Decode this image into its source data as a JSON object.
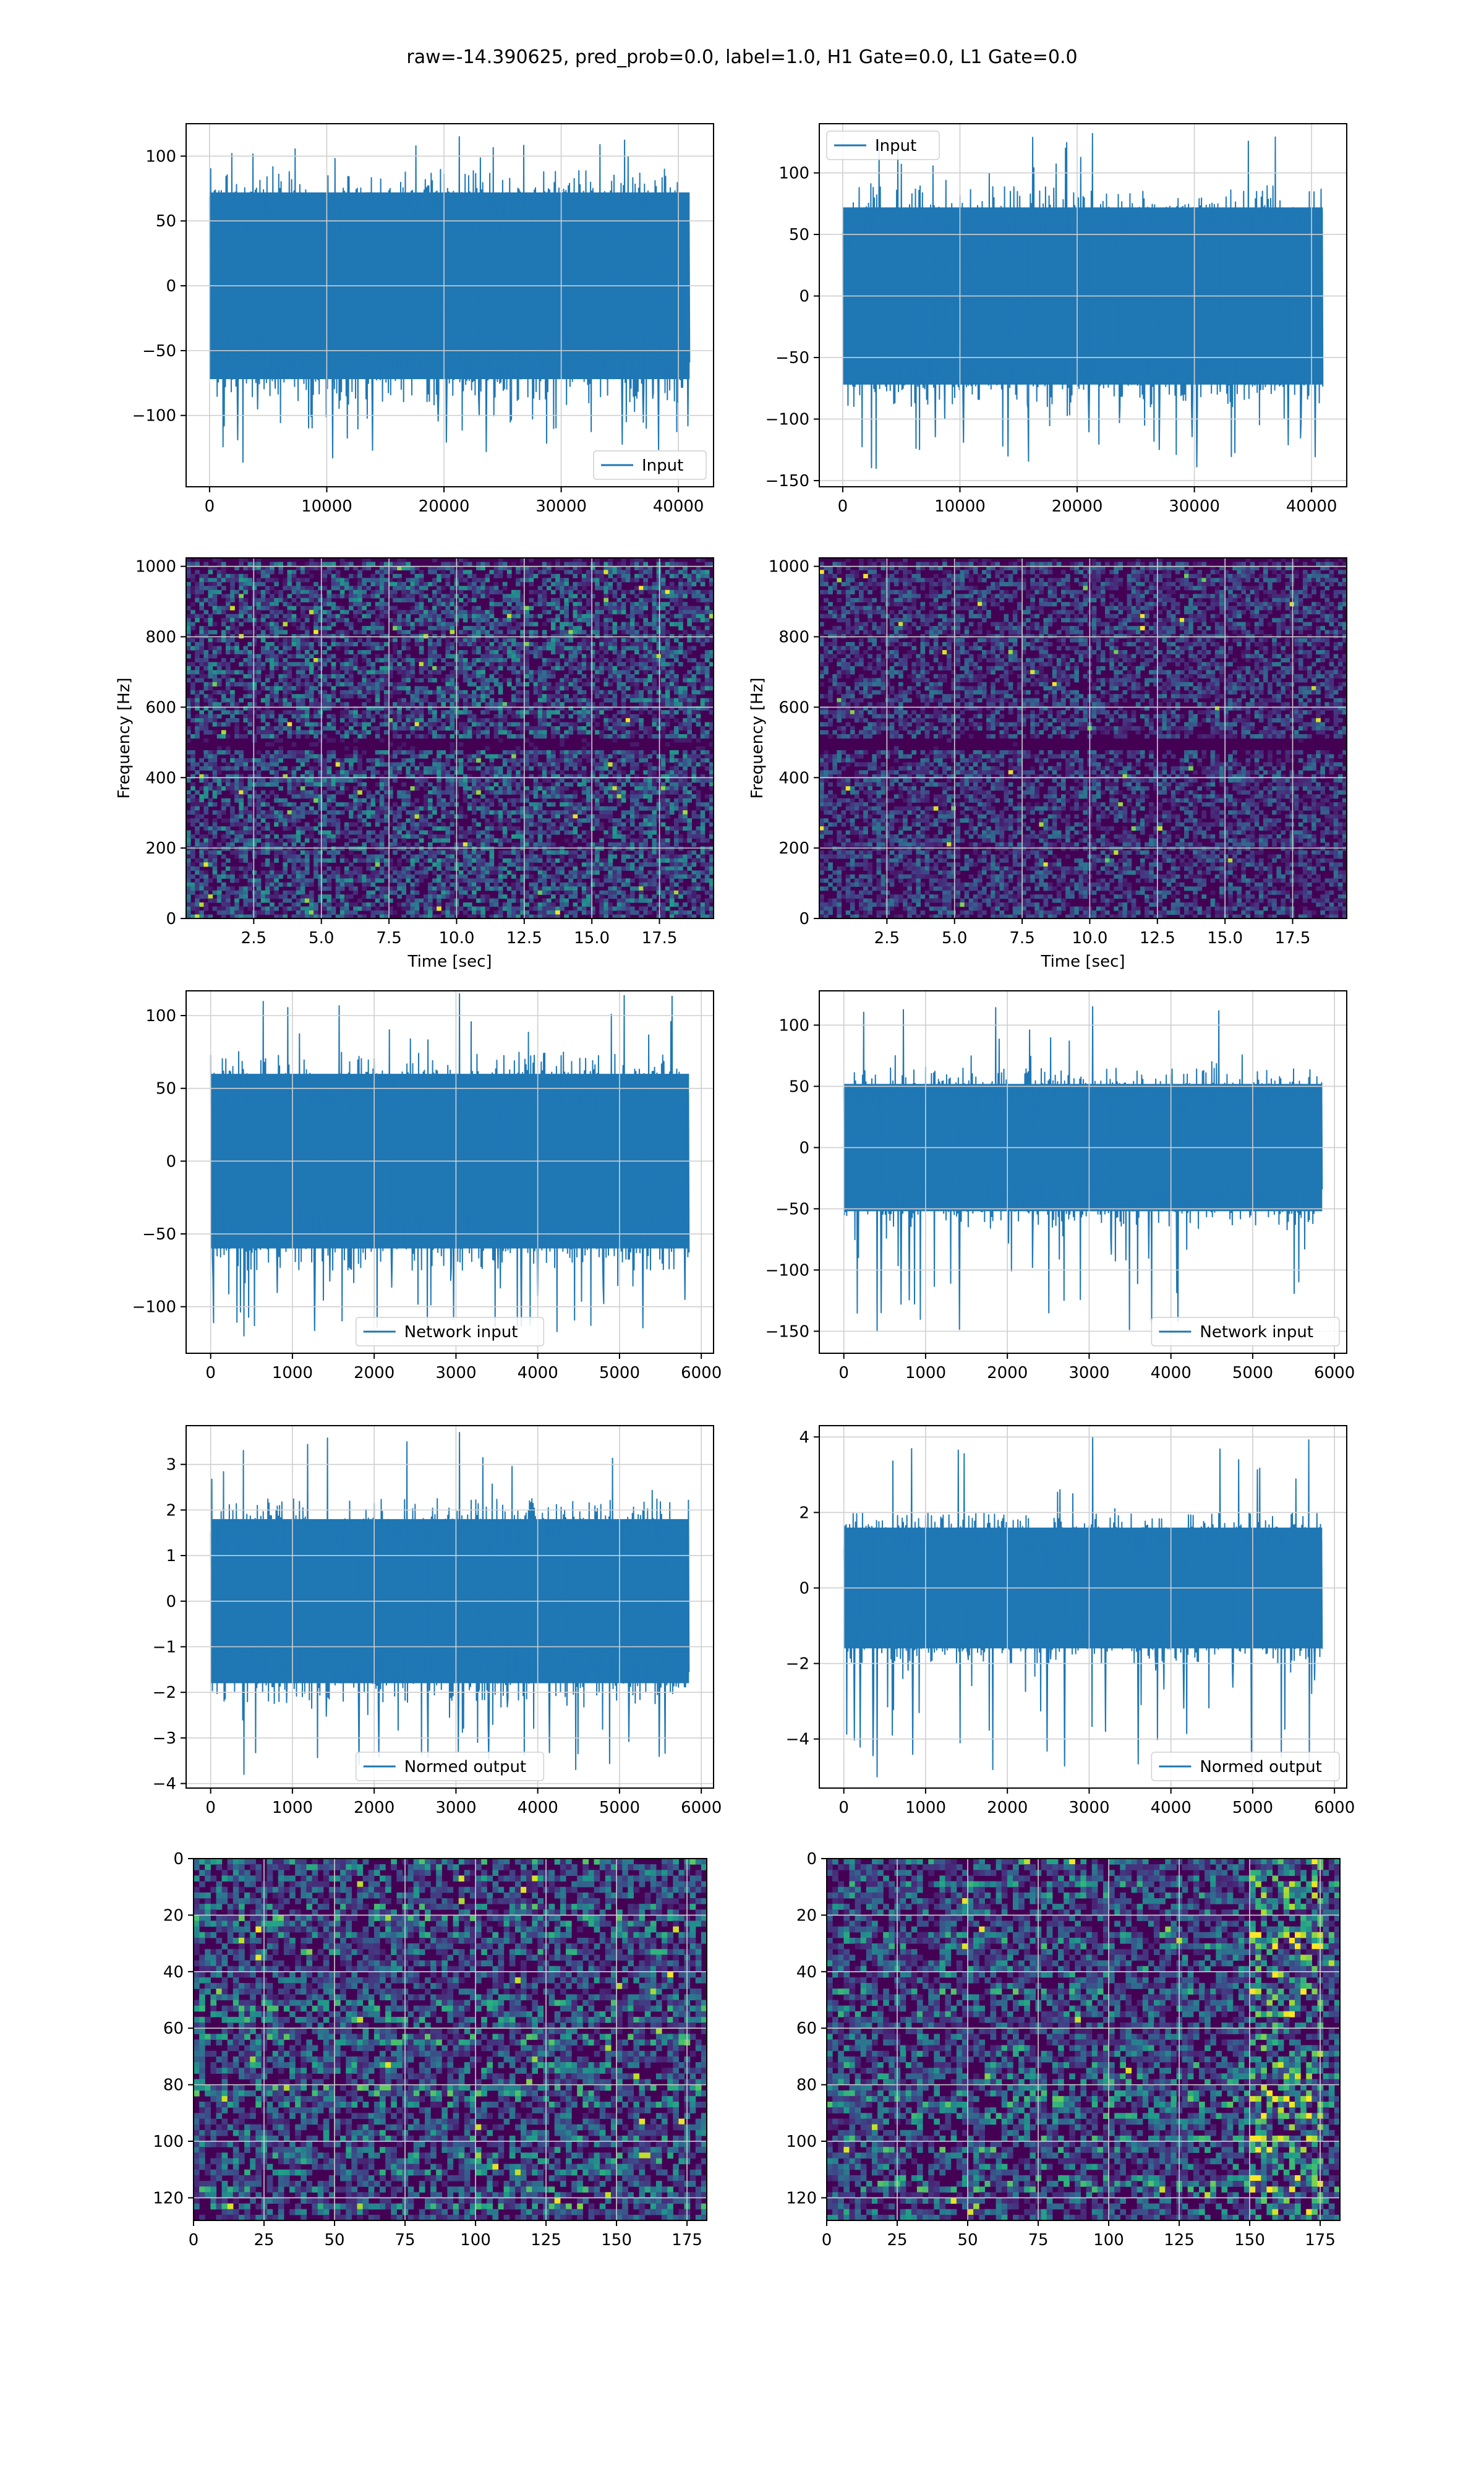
{
  "title": "raw=-14.390625, pred_prob=0.0, label=1.0, H1 Gate=0.0, L1 Gate=0.0",
  "colors": {
    "line": "#1f77b4",
    "grid": "#cfcfcf",
    "viridis_dark": "#440154",
    "viridis_mid": "#21918c",
    "viridis_bright": "#fde725"
  },
  "chart_data": [
    {
      "id": "h1-input",
      "type": "line",
      "title": "",
      "xlabel": "",
      "ylabel": "",
      "xlim": [
        -2000,
        43000
      ],
      "ylim": [
        -155,
        125
      ],
      "xticks": [
        0,
        10000,
        20000,
        30000,
        40000
      ],
      "yticks": [
        -100,
        -50,
        0,
        50,
        100
      ],
      "legend": "bottom-right",
      "grid": true,
      "series": [
        {
          "name": "Input",
          "x_range": [
            0,
            40960
          ],
          "band": [
            -72,
            72
          ],
          "extremes": [
            -136,
            115
          ]
        }
      ]
    },
    {
      "id": "l1-input",
      "type": "line",
      "title": "",
      "xlabel": "",
      "ylabel": "",
      "xlim": [
        -2000,
        43000
      ],
      "ylim": [
        -155,
        140
      ],
      "xticks": [
        0,
        10000,
        20000,
        30000,
        40000
      ],
      "yticks": [
        -150,
        -100,
        -50,
        0,
        50,
        100
      ],
      "legend": "top-left",
      "grid": true,
      "series": [
        {
          "name": "Input",
          "x_range": [
            0,
            40960
          ],
          "band": [
            -72,
            72
          ],
          "extremes": [
            -140,
            132
          ]
        }
      ]
    },
    {
      "id": "h1-spectrogram",
      "type": "heatmap",
      "title": "",
      "xlabel": "Time [sec]",
      "ylabel": "Frequency [Hz]",
      "xlim": [
        0,
        19.5
      ],
      "ylim": [
        0,
        1024
      ],
      "xticks": [
        2.5,
        5.0,
        7.5,
        10.0,
        12.5,
        15.0,
        17.5
      ],
      "yticks": [
        0,
        200,
        400,
        600,
        800,
        1000
      ],
      "colormap": "viridis",
      "grid": true,
      "dark_band_hz": 500
    },
    {
      "id": "l1-spectrogram",
      "type": "heatmap",
      "title": "",
      "xlabel": "Time [sec]",
      "ylabel": "Frequency [Hz]",
      "xlim": [
        0,
        19.5
      ],
      "ylim": [
        0,
        1024
      ],
      "xticks": [
        2.5,
        5.0,
        7.5,
        10.0,
        12.5,
        15.0,
        17.5
      ],
      "yticks": [
        0,
        200,
        400,
        600,
        800,
        1000
      ],
      "colormap": "viridis",
      "grid": true,
      "dark_band_hz": 500
    },
    {
      "id": "h1-network-input",
      "type": "line",
      "title": "",
      "xlabel": "",
      "ylabel": "",
      "xlim": [
        -300,
        6150
      ],
      "ylim": [
        -132,
        117
      ],
      "xticks": [
        0,
        1000,
        2000,
        3000,
        4000,
        5000,
        6000
      ],
      "yticks": [
        -100,
        -50,
        0,
        50,
        100
      ],
      "legend": "bottom-center",
      "grid": true,
      "series": [
        {
          "name": "Network input",
          "x_range": [
            0,
            5850
          ],
          "band": [
            -60,
            60
          ],
          "extremes": [
            -120,
            115
          ]
        }
      ]
    },
    {
      "id": "l1-network-input",
      "type": "line",
      "title": "",
      "xlabel": "",
      "ylabel": "",
      "xlim": [
        -300,
        6150
      ],
      "ylim": [
        -168,
        128
      ],
      "xticks": [
        0,
        1000,
        2000,
        3000,
        4000,
        5000,
        6000
      ],
      "yticks": [
        -150,
        -100,
        -50,
        0,
        50,
        100
      ],
      "legend": "bottom-right",
      "grid": true,
      "series": [
        {
          "name": "Network input",
          "x_range": [
            0,
            5850
          ],
          "band": [
            -52,
            52
          ],
          "extremes": [
            -150,
            115
          ]
        }
      ]
    },
    {
      "id": "h1-normed-output",
      "type": "line",
      "title": "",
      "xlabel": "",
      "ylabel": "",
      "xlim": [
        -300,
        6150
      ],
      "ylim": [
        -4.1,
        3.85
      ],
      "xticks": [
        0,
        1000,
        2000,
        3000,
        4000,
        5000,
        6000
      ],
      "yticks": [
        -4,
        -3,
        -2,
        -1,
        0,
        1,
        2,
        3
      ],
      "legend": "bottom-center",
      "grid": true,
      "series": [
        {
          "name": "Normed output",
          "x_range": [
            0,
            5850
          ],
          "band": [
            -1.8,
            1.8
          ],
          "extremes": [
            -3.8,
            3.7
          ]
        }
      ]
    },
    {
      "id": "l1-normed-output",
      "type": "line",
      "title": "",
      "xlabel": "",
      "ylabel": "",
      "xlim": [
        -300,
        6150
      ],
      "ylim": [
        -5.3,
        4.3
      ],
      "xticks": [
        0,
        1000,
        2000,
        3000,
        4000,
        5000,
        6000
      ],
      "yticks": [
        -4,
        -2,
        0,
        2,
        4
      ],
      "legend": "bottom-right",
      "grid": true,
      "series": [
        {
          "name": "Normed output",
          "x_range": [
            0,
            5850
          ],
          "band": [
            -1.6,
            1.6
          ],
          "extremes": [
            -5.0,
            4.0
          ]
        }
      ]
    },
    {
      "id": "h1-network-heatmap",
      "type": "heatmap",
      "title": "",
      "xlabel": "",
      "ylabel": "",
      "xlim": [
        0,
        182
      ],
      "ylim": [
        128,
        0
      ],
      "cols": 182,
      "rows": 128,
      "xticks": [
        0,
        25,
        50,
        75,
        100,
        125,
        150,
        175
      ],
      "yticks": [
        0,
        20,
        40,
        60,
        80,
        100,
        120
      ],
      "colormap": "viridis",
      "grid": true
    },
    {
      "id": "l1-network-heatmap",
      "type": "heatmap",
      "title": "",
      "xlabel": "",
      "ylabel": "",
      "xlim": [
        0,
        182
      ],
      "ylim": [
        128,
        0
      ],
      "cols": 182,
      "rows": 128,
      "xticks": [
        0,
        25,
        50,
        75,
        100,
        125,
        150,
        175
      ],
      "yticks": [
        0,
        20,
        40,
        60,
        80,
        100,
        120
      ],
      "colormap": "viridis",
      "grid": true,
      "bright_cols": [
        150,
        175
      ]
    }
  ]
}
